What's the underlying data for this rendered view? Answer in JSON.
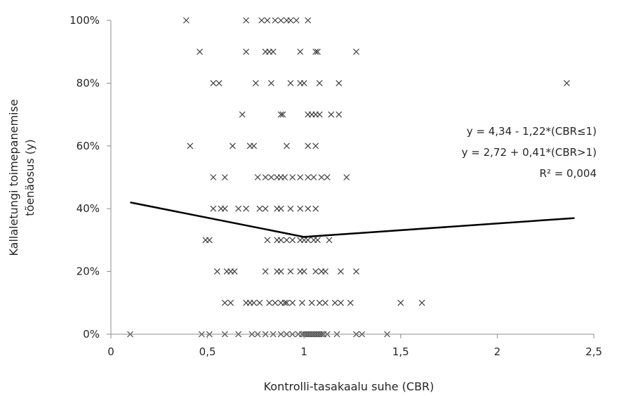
{
  "chart_data": {
    "type": "scatter",
    "xlabel": "Kontrolli-tasakaalu  suhe (CBR)",
    "ylabel_line1": "Kallaletungi toimepanemise",
    "ylabel_line2": "tõenäosus (y)",
    "xlim": [
      0,
      2.5
    ],
    "ylim": [
      0,
      1
    ],
    "x_ticks": [
      0,
      0.5,
      1,
      1.5,
      2,
      2.5
    ],
    "x_tick_labels": [
      "0",
      "0,5",
      "1",
      "1,5",
      "2",
      "2,5"
    ],
    "y_ticks": [
      0,
      0.2,
      0.4,
      0.6,
      0.8,
      1
    ],
    "y_tick_labels": [
      "0%",
      "20%",
      "40%",
      "60%",
      "80%",
      "100%"
    ],
    "grid": false,
    "marker": "x",
    "equations": [
      "y = 4,34 - 1,22*(CBR≤1)",
      "y = 2,72 + 0,41*(CBR>1)",
      "R² = 0,004"
    ],
    "trend_line": {
      "x": [
        0.1,
        1.0,
        2.4
      ],
      "y": [
        0.42,
        0.31,
        0.37
      ]
    },
    "points": [
      [
        0.39,
        1.0
      ],
      [
        0.7,
        1.0
      ],
      [
        0.78,
        1.0
      ],
      [
        0.81,
        1.0
      ],
      [
        0.85,
        1.0
      ],
      [
        0.88,
        1.0
      ],
      [
        0.91,
        1.0
      ],
      [
        0.93,
        1.0
      ],
      [
        0.96,
        1.0
      ],
      [
        1.02,
        1.0
      ],
      [
        0.46,
        0.9
      ],
      [
        0.7,
        0.9
      ],
      [
        0.8,
        0.9
      ],
      [
        0.82,
        0.9
      ],
      [
        0.84,
        0.9
      ],
      [
        0.98,
        0.9
      ],
      [
        1.06,
        0.9
      ],
      [
        1.07,
        0.9
      ],
      [
        1.27,
        0.9
      ],
      [
        0.53,
        0.8
      ],
      [
        0.56,
        0.8
      ],
      [
        0.75,
        0.8
      ],
      [
        0.83,
        0.8
      ],
      [
        0.93,
        0.8
      ],
      [
        0.98,
        0.8
      ],
      [
        1.0,
        0.8
      ],
      [
        1.08,
        0.8
      ],
      [
        1.18,
        0.8
      ],
      [
        2.36,
        0.8
      ],
      [
        0.68,
        0.7
      ],
      [
        0.88,
        0.7
      ],
      [
        0.89,
        0.7
      ],
      [
        1.02,
        0.7
      ],
      [
        1.04,
        0.7
      ],
      [
        1.06,
        0.7
      ],
      [
        1.08,
        0.7
      ],
      [
        1.14,
        0.7
      ],
      [
        1.18,
        0.7
      ],
      [
        0.41,
        0.6
      ],
      [
        0.63,
        0.6
      ],
      [
        0.72,
        0.6
      ],
      [
        0.74,
        0.6
      ],
      [
        0.91,
        0.6
      ],
      [
        1.02,
        0.6
      ],
      [
        1.06,
        0.6
      ],
      [
        0.53,
        0.5
      ],
      [
        0.59,
        0.5
      ],
      [
        0.76,
        0.5
      ],
      [
        0.8,
        0.5
      ],
      [
        0.83,
        0.5
      ],
      [
        0.86,
        0.5
      ],
      [
        0.88,
        0.5
      ],
      [
        0.9,
        0.5
      ],
      [
        0.94,
        0.5
      ],
      [
        0.98,
        0.5
      ],
      [
        1.02,
        0.5
      ],
      [
        1.05,
        0.5
      ],
      [
        1.09,
        0.5
      ],
      [
        1.12,
        0.5
      ],
      [
        1.22,
        0.5
      ],
      [
        0.53,
        0.4
      ],
      [
        0.57,
        0.4
      ],
      [
        0.59,
        0.4
      ],
      [
        0.66,
        0.4
      ],
      [
        0.7,
        0.4
      ],
      [
        0.77,
        0.4
      ],
      [
        0.8,
        0.4
      ],
      [
        0.86,
        0.4
      ],
      [
        0.88,
        0.4
      ],
      [
        0.93,
        0.4
      ],
      [
        0.98,
        0.4
      ],
      [
        1.02,
        0.4
      ],
      [
        1.06,
        0.4
      ],
      [
        0.49,
        0.3
      ],
      [
        0.51,
        0.3
      ],
      [
        0.81,
        0.3
      ],
      [
        0.86,
        0.3
      ],
      [
        0.88,
        0.3
      ],
      [
        0.91,
        0.3
      ],
      [
        0.94,
        0.3
      ],
      [
        0.98,
        0.3
      ],
      [
        1.0,
        0.3
      ],
      [
        1.02,
        0.3
      ],
      [
        1.05,
        0.3
      ],
      [
        1.07,
        0.3
      ],
      [
        1.13,
        0.3
      ],
      [
        0.55,
        0.2
      ],
      [
        0.6,
        0.2
      ],
      [
        0.62,
        0.2
      ],
      [
        0.64,
        0.2
      ],
      [
        0.8,
        0.2
      ],
      [
        0.86,
        0.2
      ],
      [
        0.88,
        0.2
      ],
      [
        0.93,
        0.2
      ],
      [
        0.98,
        0.2
      ],
      [
        1.0,
        0.2
      ],
      [
        1.06,
        0.2
      ],
      [
        1.09,
        0.2
      ],
      [
        1.11,
        0.2
      ],
      [
        1.19,
        0.2
      ],
      [
        1.27,
        0.2
      ],
      [
        0.59,
        0.1
      ],
      [
        0.62,
        0.1
      ],
      [
        0.7,
        0.1
      ],
      [
        0.72,
        0.1
      ],
      [
        0.74,
        0.1
      ],
      [
        0.77,
        0.1
      ],
      [
        0.82,
        0.1
      ],
      [
        0.85,
        0.1
      ],
      [
        0.88,
        0.1
      ],
      [
        0.9,
        0.1
      ],
      [
        0.91,
        0.1
      ],
      [
        0.94,
        0.1
      ],
      [
        0.99,
        0.1
      ],
      [
        1.04,
        0.1
      ],
      [
        1.08,
        0.1
      ],
      [
        1.11,
        0.1
      ],
      [
        1.16,
        0.1
      ],
      [
        1.19,
        0.1
      ],
      [
        1.24,
        0.1
      ],
      [
        1.5,
        0.1
      ],
      [
        1.61,
        0.1
      ],
      [
        0.1,
        0
      ],
      [
        0.47,
        0
      ],
      [
        0.51,
        0
      ],
      [
        0.59,
        0
      ],
      [
        0.66,
        0
      ],
      [
        0.73,
        0
      ],
      [
        0.76,
        0
      ],
      [
        0.8,
        0
      ],
      [
        0.84,
        0
      ],
      [
        0.88,
        0
      ],
      [
        0.91,
        0
      ],
      [
        0.94,
        0
      ],
      [
        0.97,
        0
      ],
      [
        0.99,
        0
      ],
      [
        1.0,
        0
      ],
      [
        1.01,
        0
      ],
      [
        1.02,
        0
      ],
      [
        1.03,
        0
      ],
      [
        1.04,
        0
      ],
      [
        1.05,
        0
      ],
      [
        1.06,
        0
      ],
      [
        1.07,
        0
      ],
      [
        1.08,
        0
      ],
      [
        1.09,
        0
      ],
      [
        1.1,
        0
      ],
      [
        1.12,
        0
      ],
      [
        1.17,
        0
      ],
      [
        1.27,
        0
      ],
      [
        1.3,
        0
      ],
      [
        1.43,
        0
      ]
    ]
  }
}
